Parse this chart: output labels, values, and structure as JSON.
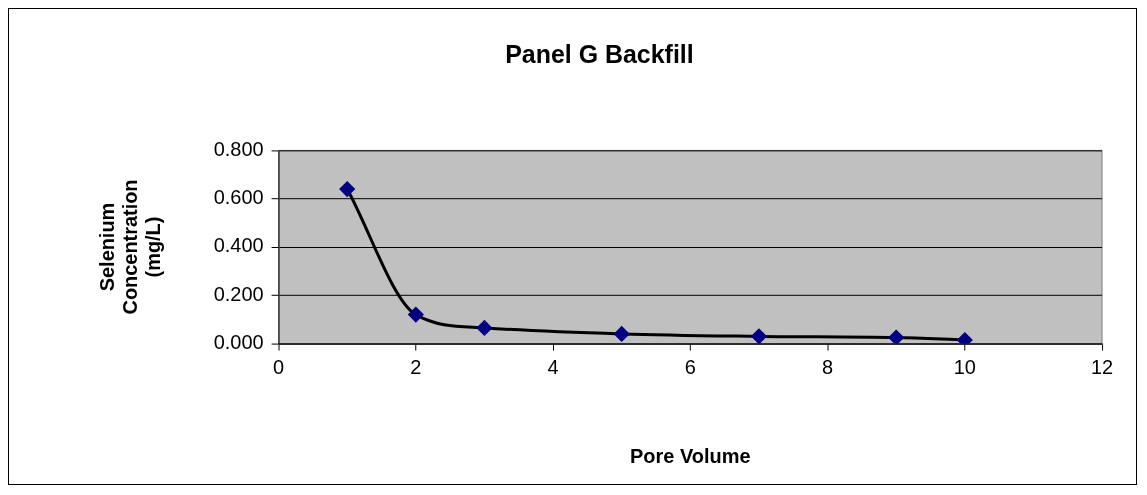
{
  "chart_data": {
    "type": "line",
    "title": "Panel G Backfill",
    "xlabel": "Pore Volume",
    "ylabel": "Selenium Concentration (mg/L)",
    "x": [
      1,
      2,
      3,
      5,
      7,
      9,
      10
    ],
    "series": [
      {
        "color": "#000000",
        "values": [
          0.64,
          0.12,
          0.065,
          0.04,
          0.03,
          0.025,
          0.015
        ]
      }
    ],
    "marker": "diamond",
    "line_style": "solid",
    "xlim": [
      0,
      12
    ],
    "xticks": [
      0,
      2,
      4,
      6,
      8,
      10,
      12
    ],
    "ylim": [
      0,
      0.8
    ],
    "yticks": [
      {
        "value": 0,
        "label": "0.000"
      },
      {
        "value": 0.2,
        "label": "0.200"
      },
      {
        "value": 0.4,
        "label": "0.400"
      },
      {
        "value": 0.6,
        "label": "0.600"
      },
      {
        "value": 0.8,
        "label": "0.800"
      }
    ],
    "grid": "y",
    "legend": false
  }
}
